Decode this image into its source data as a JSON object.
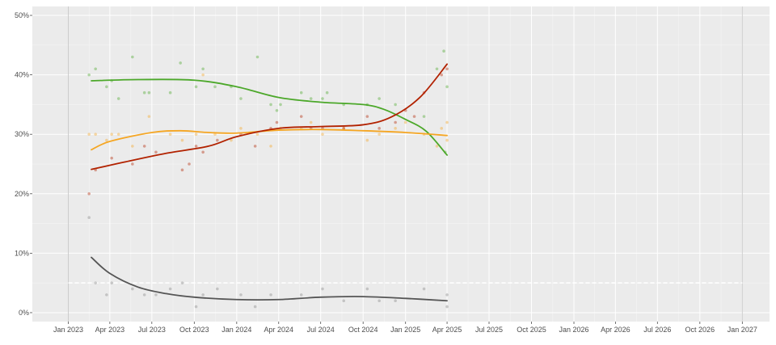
{
  "chart_data": {
    "type": "scatter",
    "x_axis": {
      "ticks": [
        {
          "date": "2023-01-01",
          "label": "Jan 2023"
        },
        {
          "date": "2023-04-01",
          "label": "Apr 2023"
        },
        {
          "date": "2023-07-01",
          "label": "Jul 2023"
        },
        {
          "date": "2023-10-01",
          "label": "Oct 2023"
        },
        {
          "date": "2024-01-01",
          "label": "Jan 2024"
        },
        {
          "date": "2024-04-01",
          "label": "Apr 2024"
        },
        {
          "date": "2024-07-01",
          "label": "Jul 2024"
        },
        {
          "date": "2024-10-01",
          "label": "Oct 2024"
        },
        {
          "date": "2025-01-01",
          "label": "Jan 2025"
        },
        {
          "date": "2025-04-01",
          "label": "Apr 2025"
        },
        {
          "date": "2025-07-01",
          "label": "Jul 2025"
        },
        {
          "date": "2025-10-01",
          "label": "Oct 2025"
        },
        {
          "date": "2026-01-01",
          "label": "Jan 2026"
        },
        {
          "date": "2026-04-01",
          "label": "Apr 2026"
        },
        {
          "date": "2026-07-01",
          "label": "Jul 2026"
        },
        {
          "date": "2026-10-01",
          "label": "Oct 2026"
        },
        {
          "date": "2027-01-01",
          "label": "Jan 2027"
        }
      ],
      "range": [
        "2022-10-15",
        "2027-03-01"
      ]
    },
    "y_axis": {
      "ticks": [
        {
          "value": 0,
          "label": "0%"
        },
        {
          "value": 10,
          "label": "10%"
        },
        {
          "value": 20,
          "label": "20%"
        },
        {
          "value": 30,
          "label": "30%"
        },
        {
          "value": 40,
          "label": "40%"
        },
        {
          "value": 50,
          "label": "50%"
        }
      ],
      "range": [
        -1.5,
        51.5
      ]
    },
    "grid": true,
    "legend": "none",
    "reference_lines": [
      {
        "kind": "vertical",
        "date": "2023-01-01",
        "color": "#cccccc"
      },
      {
        "kind": "vertical",
        "date": "2027-01-01",
        "color": "#cccccc"
      },
      {
        "kind": "horizontal-dashed",
        "value": 5,
        "from": "2023-01-01",
        "to": "2027-01-01",
        "color": "#ffffff"
      }
    ],
    "series": [
      {
        "color": "#4ca82a",
        "points": [
          [
            "2023-02-15",
            40
          ],
          [
            "2023-03-01",
            41
          ],
          [
            "2023-03-25",
            38
          ],
          [
            "2023-04-05",
            39
          ],
          [
            "2023-04-20",
            36
          ],
          [
            "2023-05-20",
            43
          ],
          [
            "2023-06-15",
            37
          ],
          [
            "2023-06-25",
            37
          ],
          [
            "2023-08-10",
            37
          ],
          [
            "2023-09-01",
            42
          ],
          [
            "2023-10-05",
            38
          ],
          [
            "2023-10-20",
            41
          ],
          [
            "2023-11-15",
            38
          ],
          [
            "2023-12-20",
            38
          ],
          [
            "2024-01-10",
            36
          ],
          [
            "2024-02-15",
            43
          ],
          [
            "2024-03-15",
            35
          ],
          [
            "2024-03-28",
            34
          ],
          [
            "2024-04-05",
            35
          ],
          [
            "2024-05-20",
            37
          ],
          [
            "2024-06-10",
            36
          ],
          [
            "2024-07-05",
            36
          ],
          [
            "2024-07-15",
            37
          ],
          [
            "2024-08-20",
            35
          ],
          [
            "2024-10-10",
            35
          ],
          [
            "2024-11-05",
            36
          ],
          [
            "2024-12-10",
            35
          ],
          [
            "2025-02-10",
            33
          ],
          [
            "2025-03-10",
            41
          ],
          [
            "2025-03-25",
            44
          ],
          [
            "2025-04-01",
            38
          ],
          [
            "2025-03-28",
            27
          ]
        ],
        "trend": [
          [
            "2023-02-20",
            39.0
          ],
          [
            "2023-06-01",
            39.2
          ],
          [
            "2023-10-01",
            39.1
          ],
          [
            "2024-01-01",
            38.0
          ],
          [
            "2024-04-01",
            36.2
          ],
          [
            "2024-07-01",
            35.4
          ],
          [
            "2024-10-01",
            35.0
          ],
          [
            "2024-11-15",
            34.2
          ],
          [
            "2025-01-01",
            32.5
          ],
          [
            "2025-02-15",
            30.5
          ],
          [
            "2025-04-01",
            26.5
          ]
        ]
      },
      {
        "color": "#f5a623",
        "points": [
          [
            "2023-02-15",
            30
          ],
          [
            "2023-03-01",
            30
          ],
          [
            "2023-03-25",
            29
          ],
          [
            "2023-04-05",
            30
          ],
          [
            "2023-04-20",
            30
          ],
          [
            "2023-05-20",
            28
          ],
          [
            "2023-06-25",
            33
          ],
          [
            "2023-08-10",
            30
          ],
          [
            "2023-09-05",
            29
          ],
          [
            "2023-10-05",
            30
          ],
          [
            "2023-10-20",
            40
          ],
          [
            "2023-11-15",
            30
          ],
          [
            "2023-12-20",
            29
          ],
          [
            "2024-01-10",
            31
          ],
          [
            "2024-02-15",
            30
          ],
          [
            "2024-03-15",
            28
          ],
          [
            "2024-04-05",
            31
          ],
          [
            "2024-05-20",
            31
          ],
          [
            "2024-06-10",
            32
          ],
          [
            "2024-07-05",
            30
          ],
          [
            "2024-08-20",
            31
          ],
          [
            "2024-10-10",
            29
          ],
          [
            "2024-11-05",
            30
          ],
          [
            "2024-12-10",
            31
          ],
          [
            "2025-01-01",
            32
          ],
          [
            "2025-02-10",
            30
          ],
          [
            "2025-03-10",
            28
          ],
          [
            "2025-03-20",
            31
          ],
          [
            "2025-04-01",
            32
          ],
          [
            "2025-04-01",
            29
          ]
        ],
        "trend": [
          [
            "2023-02-20",
            27.4
          ],
          [
            "2023-04-01",
            28.8
          ],
          [
            "2023-07-01",
            30.3
          ],
          [
            "2023-09-01",
            30.6
          ],
          [
            "2023-11-01",
            30.3
          ],
          [
            "2024-01-01",
            30.2
          ],
          [
            "2024-04-01",
            30.7
          ],
          [
            "2024-07-01",
            30.8
          ],
          [
            "2024-10-01",
            30.6
          ],
          [
            "2025-01-01",
            30.3
          ],
          [
            "2025-04-01",
            29.8
          ]
        ]
      },
      {
        "color": "#b22200",
        "points": [
          [
            "2023-02-15",
            20
          ],
          [
            "2023-03-01",
            24
          ],
          [
            "2023-04-05",
            26
          ],
          [
            "2023-05-20",
            25
          ],
          [
            "2023-06-15",
            28
          ],
          [
            "2023-07-10",
            27
          ],
          [
            "2023-09-05",
            24
          ],
          [
            "2023-09-20",
            25
          ],
          [
            "2023-10-05",
            28
          ],
          [
            "2023-10-20",
            27
          ],
          [
            "2023-11-20",
            29
          ],
          [
            "2024-01-10",
            30
          ],
          [
            "2024-02-10",
            28
          ],
          [
            "2024-03-15",
            31
          ],
          [
            "2024-03-28",
            32
          ],
          [
            "2024-05-20",
            33
          ],
          [
            "2024-06-10",
            31
          ],
          [
            "2024-07-05",
            31
          ],
          [
            "2024-08-20",
            31
          ],
          [
            "2024-10-10",
            33
          ],
          [
            "2024-11-05",
            31
          ],
          [
            "2024-12-10",
            32
          ],
          [
            "2025-01-01",
            34
          ],
          [
            "2025-01-20",
            33
          ],
          [
            "2025-02-10",
            37
          ],
          [
            "2025-03-20",
            40
          ],
          [
            "2025-04-01",
            41
          ]
        ],
        "trend": [
          [
            "2023-02-20",
            24.1
          ],
          [
            "2023-05-01",
            25.3
          ],
          [
            "2023-08-01",
            26.8
          ],
          [
            "2023-11-01",
            28.0
          ],
          [
            "2024-01-01",
            29.6
          ],
          [
            "2024-04-01",
            31.0
          ],
          [
            "2024-07-01",
            31.3
          ],
          [
            "2024-10-01",
            31.6
          ],
          [
            "2024-12-01",
            32.9
          ],
          [
            "2025-02-01",
            36.2
          ],
          [
            "2025-04-01",
            41.8
          ]
        ]
      },
      {
        "color": "#888888",
        "points": [
          [
            "2023-02-15",
            16
          ],
          [
            "2023-03-01",
            5
          ],
          [
            "2023-03-25",
            3
          ],
          [
            "2023-04-05",
            5
          ],
          [
            "2023-05-20",
            4
          ],
          [
            "2023-06-15",
            3
          ],
          [
            "2023-07-10",
            3
          ],
          [
            "2023-08-10",
            4
          ],
          [
            "2023-09-05",
            5
          ],
          [
            "2023-10-05",
            1
          ],
          [
            "2023-10-20",
            3
          ],
          [
            "2023-11-20",
            4
          ],
          [
            "2024-01-10",
            3
          ],
          [
            "2024-02-10",
            1
          ],
          [
            "2024-03-15",
            3
          ],
          [
            "2024-05-20",
            3
          ],
          [
            "2024-07-05",
            4
          ],
          [
            "2024-08-20",
            2
          ],
          [
            "2024-10-10",
            4
          ],
          [
            "2024-11-05",
            2
          ],
          [
            "2024-12-10",
            2
          ],
          [
            "2025-02-10",
            4
          ],
          [
            "2025-04-01",
            1
          ],
          [
            "2025-04-01",
            3
          ]
        ],
        "trend": [
          [
            "2023-02-20",
            9.3
          ],
          [
            "2023-04-01",
            6.6
          ],
          [
            "2023-06-01",
            4.3
          ],
          [
            "2023-08-01",
            3.2
          ],
          [
            "2023-10-01",
            2.6
          ],
          [
            "2024-01-01",
            2.2
          ],
          [
            "2024-04-01",
            2.2
          ],
          [
            "2024-07-01",
            2.6
          ],
          [
            "2024-10-01",
            2.7
          ],
          [
            "2025-01-01",
            2.4
          ],
          [
            "2025-04-01",
            2.0
          ]
        ]
      }
    ]
  }
}
